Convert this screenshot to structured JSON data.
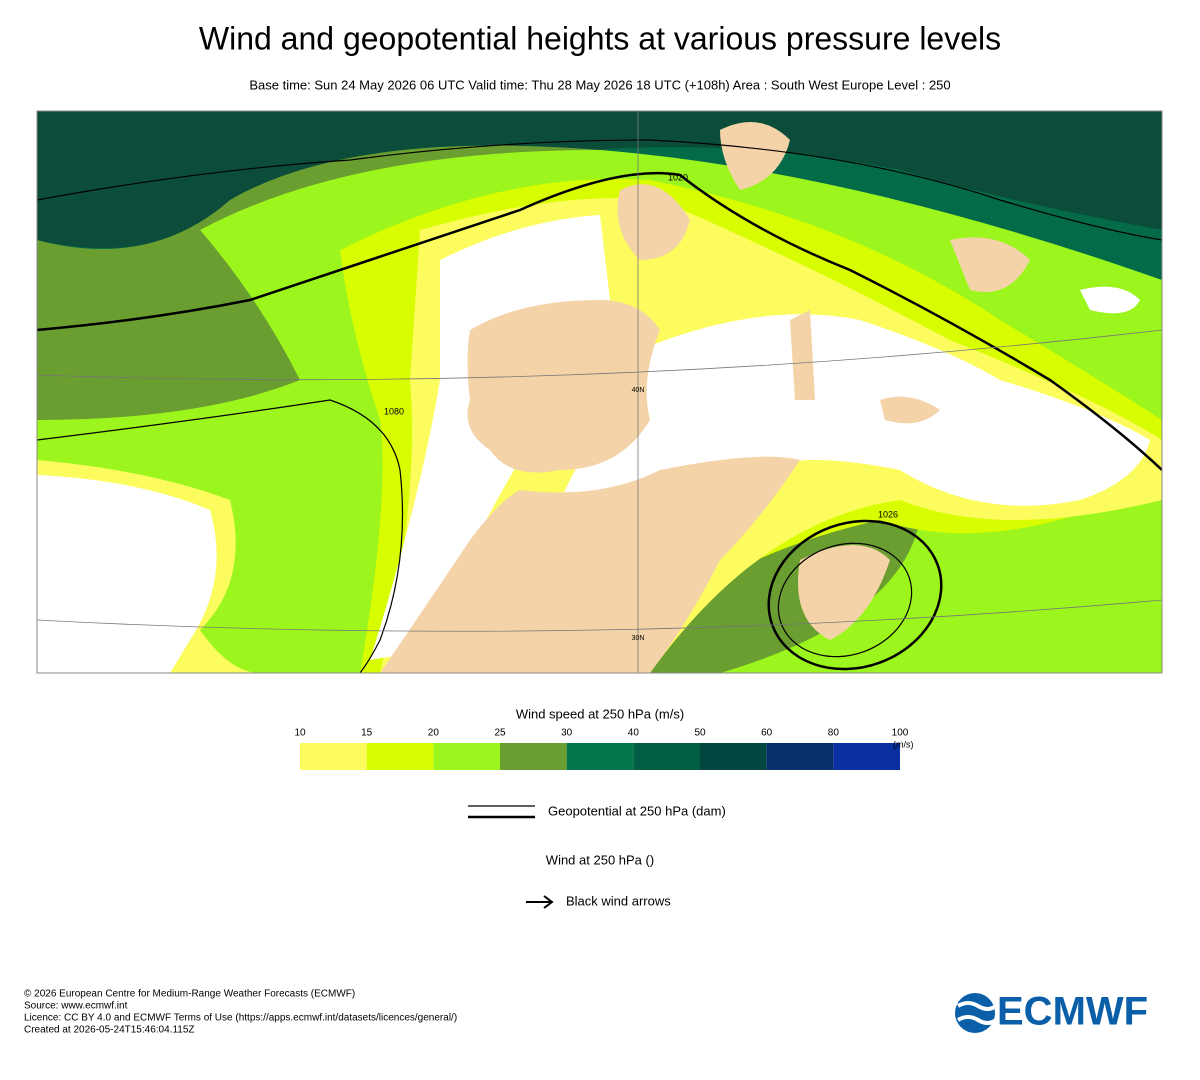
{
  "header": {
    "title": "Wind and geopotential heights at various pressure levels",
    "subtitle": "Base time: Sun 24 May 2026 06 UTC Valid time: Thu 28 May 2026 18 UTC (+108h) Area : South West Europe Level : 250"
  },
  "map": {
    "contour_labels": [
      "1080",
      "1026",
      "1020"
    ],
    "latitude_labels": [
      "40N",
      "30N"
    ]
  },
  "legend": {
    "title": "Wind speed at 250 hPa (m/s)",
    "ticks": [
      10,
      15,
      20,
      25,
      30,
      40,
      50,
      60,
      80,
      100
    ],
    "unit": "(m/s)",
    "colors": [
      "#fcfc5e",
      "#d8fc00",
      "#9cf51c",
      "#6a9e30",
      "#04784a",
      "#035e46",
      "#034640",
      "#082f6a",
      "#0a2fa0"
    ],
    "geopotential": "Geopotential at 250 hPa (dam)",
    "wind": "Wind at 250 hPa ()",
    "arrows": "Black wind arrows"
  },
  "footer": {
    "lines": [
      "© 2026 European Centre for Medium-Range Weather Forecasts (ECMWF)",
      "Source: www.ecmwf.int",
      "Licence: CC BY 4.0 and ECMWF Terms of Use (https://apps.ecmwf.int/datasets/licences/general/)",
      "Created at 2026-05-24T15:46:04.115Z"
    ],
    "logo": "ECMWF"
  }
}
